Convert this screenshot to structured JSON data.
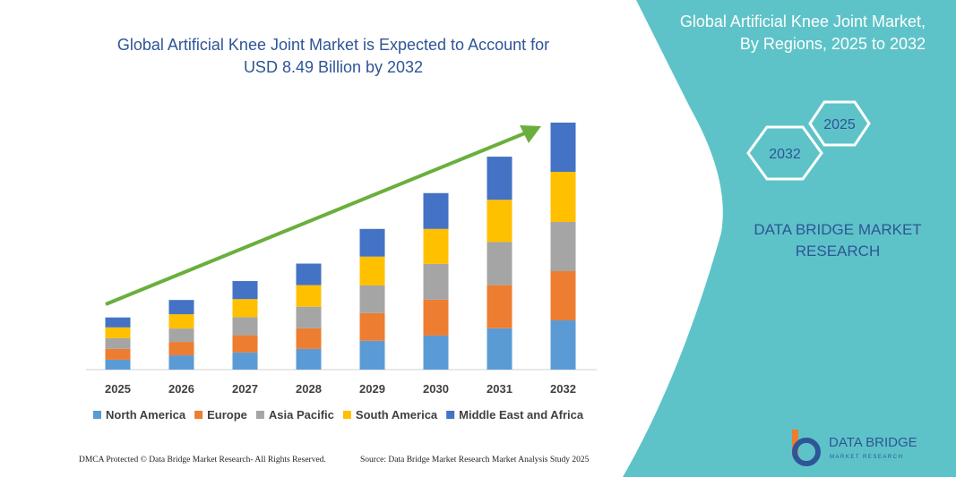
{
  "chart_data": {
    "type": "stacked-bar",
    "title": "Global Artificial Knee Joint Market is Expected to Account for USD 8.49 Billion by 2032",
    "categories": [
      "2025",
      "2026",
      "2027",
      "2028",
      "2029",
      "2030",
      "2031",
      "2032"
    ],
    "series": [
      {
        "name": "North America",
        "color": "#5b9bd5",
        "values": [
          0.34,
          0.49,
          0.59,
          0.71,
          0.99,
          1.17,
          1.42,
          1.69
        ]
      },
      {
        "name": "Europe",
        "color": "#ed7d31",
        "values": [
          0.37,
          0.46,
          0.59,
          0.71,
          0.95,
          1.23,
          1.48,
          1.69
        ]
      },
      {
        "name": "Asia Pacific",
        "color": "#a5a5a5",
        "values": [
          0.37,
          0.46,
          0.62,
          0.74,
          0.95,
          1.23,
          1.48,
          1.69
        ]
      },
      {
        "name": "South America",
        "color": "#ffc000",
        "values": [
          0.37,
          0.49,
          0.62,
          0.74,
          0.99,
          1.2,
          1.45,
          1.72
        ]
      },
      {
        "name": "Middle East and Africa",
        "color": "#4472c4",
        "values": [
          0.34,
          0.49,
          0.62,
          0.74,
          0.95,
          1.23,
          1.48,
          1.69
        ]
      }
    ]
  },
  "panel": {
    "title": "Global Artificial Knee Joint Market, By Regions, 2025 to 2032",
    "hexagons": [
      "2025",
      "2032"
    ],
    "brand": "DATA BRIDGE MARKET RESEARCH"
  },
  "logo": {
    "name": "DATA BRIDGE",
    "tagline": "MARKET RESEARCH"
  },
  "footer": {
    "left": "DMCA Protected © Data Bridge Market Research- All Rights Reserved.",
    "right": "Source: Data Bridge Market Research Market Analysis Study 2025"
  }
}
